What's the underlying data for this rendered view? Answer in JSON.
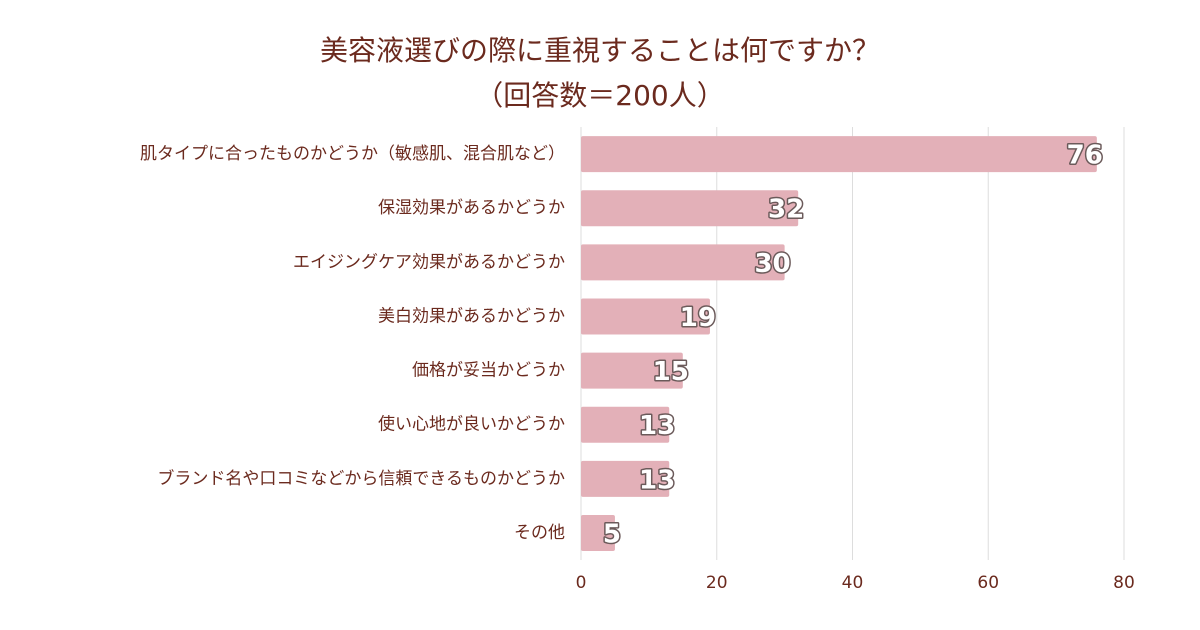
{
  "chart_data": {
    "type": "bar",
    "orientation": "horizontal",
    "title": "美容液選びの際に重視することは何ですか？",
    "subtitle": "（回答数＝200人）",
    "categories": [
      "肌タイプに合ったものかどうか（敏感肌、混合肌など）",
      "保湿効果があるかどうか",
      "エイジングケア効果があるかどうか",
      "美白効果があるかどうか",
      "価格が妥当かどうか",
      "使い心地が良いかどうか",
      "ブランド名や口コミなどから信頼できるものかどうか",
      "その他"
    ],
    "values": [
      76,
      32,
      30,
      19,
      15,
      13,
      13,
      5
    ],
    "color": "#e3b0b8",
    "xlim": [
      0,
      80
    ],
    "xticks": [
      0,
      20,
      40,
      60,
      80
    ],
    "grid": true
  }
}
